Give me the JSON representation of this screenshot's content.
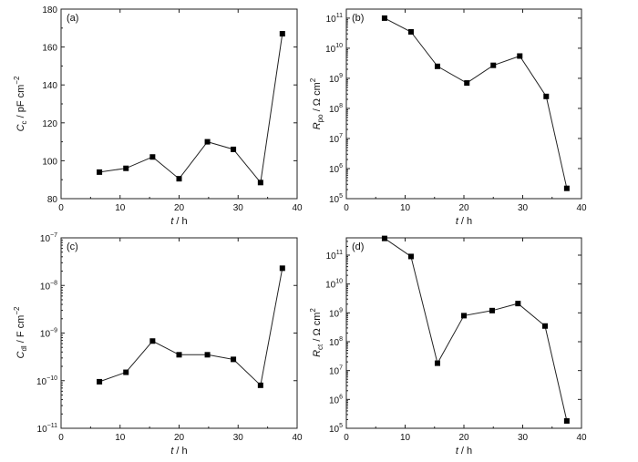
{
  "chart_data": [
    {
      "panel": "(a)",
      "type": "line",
      "scale": "linear",
      "xlabel": "t / h",
      "ylabel": "C_c / pF cm^-2",
      "ylabel_parts": {
        "main": "C",
        "sub": "c",
        "unit": " / pF cm",
        "sup": "−2"
      },
      "xlim": [
        0,
        40
      ],
      "ylim": [
        80,
        180
      ],
      "xticks": [
        0,
        10,
        20,
        30,
        40
      ],
      "yticks": [
        80,
        100,
        120,
        140,
        160,
        180
      ],
      "x": [
        6.5,
        11,
        15.5,
        20,
        24.8,
        29.2,
        33.8,
        37.5
      ],
      "y": [
        94,
        96,
        102,
        90.5,
        110,
        106,
        88.5,
        167
      ]
    },
    {
      "panel": "(b)",
      "type": "line",
      "scale": "log",
      "xlabel": "t / h",
      "ylabel": "R_po / Ω cm^2",
      "ylabel_parts": {
        "main": "R",
        "sub": "po",
        "unit": " / Ω cm",
        "sup": "2"
      },
      "xlim": [
        0,
        40
      ],
      "ylim_exp": [
        5,
        11.3
      ],
      "xticks": [
        0,
        10,
        20,
        30,
        40
      ],
      "yticks_exp": [
        5,
        6,
        7,
        8,
        9,
        10,
        11
      ],
      "x": [
        6.5,
        11,
        15.5,
        20.5,
        25,
        29.5,
        34,
        37.5
      ],
      "y": [
        100000000000.0,
        35000000000.0,
        2500000000.0,
        700000000.0,
        2700000000.0,
        5500000000.0,
        250000000.0,
        220000.0
      ]
    },
    {
      "panel": "(c)",
      "type": "line",
      "scale": "log",
      "xlabel": "t / h",
      "ylabel": "C_dl / F cm^-2",
      "ylabel_parts": {
        "main": "C",
        "sub": "dl",
        "unit": " / F cm",
        "sup": "−2"
      },
      "xlim": [
        0,
        40
      ],
      "ylim_exp": [
        -11,
        -7
      ],
      "xticks": [
        0,
        10,
        20,
        30,
        40
      ],
      "yticks_exp": [
        -11,
        -10,
        -9,
        -8,
        -7
      ],
      "x": [
        6.5,
        11,
        15.5,
        20,
        24.8,
        29.2,
        33.8,
        37.5
      ],
      "y": [
        9.5e-11,
        1.5e-10,
        6.8e-10,
        3.5e-10,
        3.5e-10,
        2.8e-10,
        8e-11,
        2.3e-08
      ]
    },
    {
      "panel": "(d)",
      "type": "line",
      "scale": "log",
      "xlabel": "t / h",
      "ylabel": "R_ct / Ω cm^2",
      "ylabel_parts": {
        "main": "R",
        "sub": "ct",
        "unit": " / Ω cm",
        "sup": "2"
      },
      "xlim": [
        0,
        40
      ],
      "ylim_exp": [
        5,
        11.6
      ],
      "xticks": [
        0,
        10,
        20,
        30,
        40
      ],
      "yticks_exp": [
        5,
        6,
        7,
        8,
        9,
        10,
        11
      ],
      "x": [
        6.5,
        11,
        15.5,
        20,
        24.8,
        29.2,
        33.8,
        37.5
      ],
      "y": [
        380000000000.0,
        90000000000.0,
        18000000.0,
        800000000.0,
        1200000000.0,
        2100000000.0,
        350000000.0,
        180000.0
      ]
    }
  ]
}
